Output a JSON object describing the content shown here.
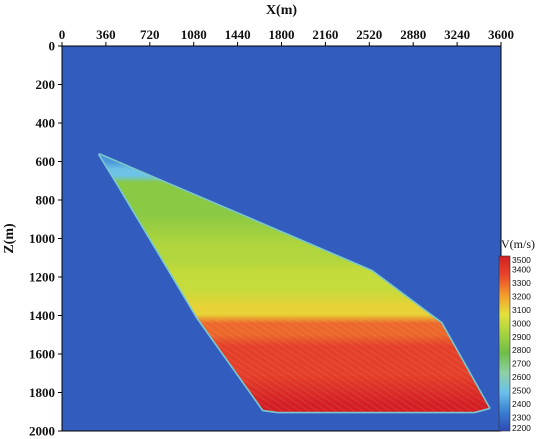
{
  "chart_data": {
    "type": "heatmap",
    "title": "",
    "xlabel": "X(m)",
    "ylabel": "Z(m)",
    "xlim": [
      0,
      3600
    ],
    "ylim": [
      0,
      2000
    ],
    "y_inverted": true,
    "x_axis_position": "top",
    "x_ticks": [
      0,
      360,
      720,
      1080,
      1440,
      1800,
      2160,
      2520,
      2880,
      3240,
      3600
    ],
    "y_ticks": [
      0,
      200,
      400,
      600,
      800,
      1000,
      1200,
      1400,
      1600,
      1800,
      2000
    ],
    "background_velocity": 2250,
    "body_outline": [
      [
        310,
        565
      ],
      [
        1860,
        985
      ],
      [
        2540,
        1170
      ],
      [
        3110,
        1440
      ],
      [
        3500,
        1880
      ],
      [
        3380,
        1900
      ],
      [
        1770,
        1900
      ],
      [
        1650,
        1890
      ],
      [
        1110,
        1410
      ],
      [
        460,
        720
      ],
      [
        310,
        565
      ]
    ],
    "layers": [
      {
        "z_range": [
          565,
          640
        ],
        "velocity": 2400
      },
      {
        "z_range": [
          640,
          710
        ],
        "velocity": 2500
      },
      {
        "z_range": [
          710,
          1040
        ],
        "velocity": 2850
      },
      {
        "z_range": [
          1040,
          1180
        ],
        "velocity": 2950
      },
      {
        "z_range": [
          1180,
          1350
        ],
        "velocity": 3000
      },
      {
        "z_range": [
          1350,
          1440
        ],
        "velocity": 3100
      },
      {
        "z_range": [
          1440,
          1560
        ],
        "velocity": 3300
      },
      {
        "z_range": [
          1560,
          1860
        ],
        "velocity": 3380
      },
      {
        "z_range": [
          1860,
          1900
        ],
        "velocity": 3500
      }
    ],
    "colorbar": {
      "title": "V(m/s)",
      "ticks": [
        3500,
        3400,
        3300,
        3200,
        3100,
        3000,
        2900,
        2800,
        2700,
        2600,
        2500,
        2400,
        2300,
        2200
      ],
      "range": [
        2200,
        3500
      ],
      "colors": [
        "#2f49b5",
        "#3a7fd2",
        "#6ac2ea",
        "#8fd0a6",
        "#6fbe48",
        "#a5d33e",
        "#e3e23a",
        "#f39b2b",
        "#e8462a",
        "#d31f24"
      ]
    }
  }
}
